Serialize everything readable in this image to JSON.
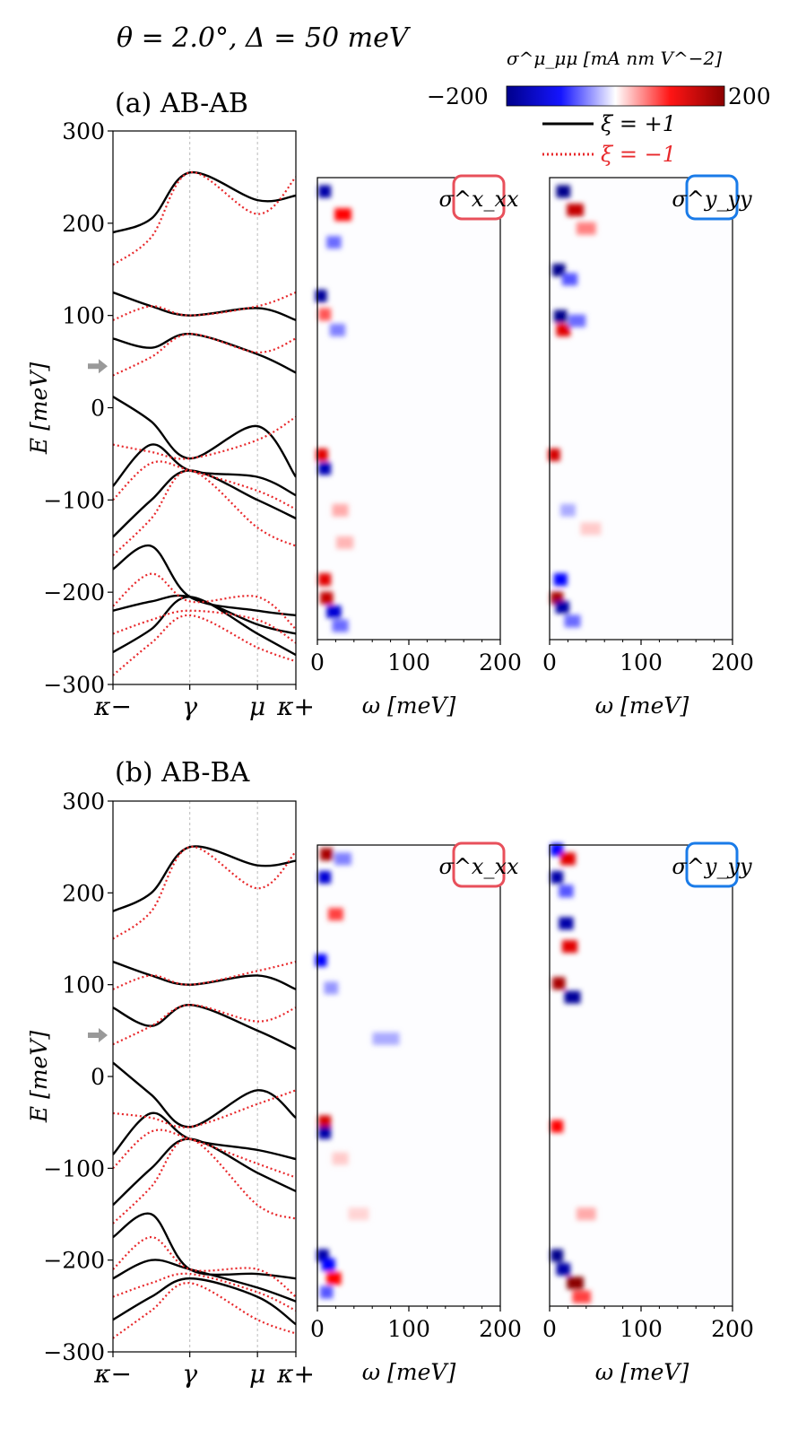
{
  "figure": {
    "header_params": "θ = 2.0°,  Δ = 50 meV",
    "colorbar": {
      "label": "σ^μ_μμ [mA nm V^−2]",
      "min_label": "−200",
      "max_label": "200",
      "min": -200,
      "max": 200,
      "colors": [
        "#00008b",
        "#0000ff",
        "#ffffff",
        "#ff0000",
        "#8b0000"
      ]
    },
    "legend": [
      {
        "label": "ξ = +1",
        "color": "#000000",
        "style": "solid"
      },
      {
        "label": "ξ = −1",
        "color": "#e8282b",
        "style": "dotted"
      }
    ],
    "band_axis": {
      "ylabel": "E [meV]",
      "y_ticks": [
        "300",
        "200",
        "100",
        "0",
        "−100",
        "−200",
        "−300"
      ],
      "k_ticks": [
        "κ−",
        "γ",
        "μ",
        "κ+"
      ]
    },
    "cond_axis": {
      "xlabel": "ω [meV]",
      "x_ticks": [
        "0",
        "100",
        "200"
      ]
    },
    "panel_a": {
      "title": "(a) AB-AB",
      "tag_xx": "σ^x_xx",
      "tag_yy": "σ^y_yy"
    },
    "panel_b": {
      "title": "(b) AB-BA",
      "tag_xx": "σ^x_xx",
      "tag_yy": "σ^y_yy"
    },
    "colors": {
      "tag_xx": "#e8505b",
      "tag_yy": "#1a7be8",
      "arrow": "#999999"
    }
  },
  "chart_data": [
    {
      "type": "line",
      "title": "(a) AB-AB",
      "ylabel": "E [meV]",
      "ylim": [
        -300,
        300
      ],
      "x_ticks": [
        "κ−",
        "γ",
        "μ",
        "κ+"
      ],
      "arrow_energy": 45,
      "series": [
        {
          "name": "ξ = +1",
          "color": "#000000",
          "bands": [
            [
              -265,
              -240,
              -205,
              -245,
              -268
            ],
            [
              -220,
              -210,
              -205,
              -235,
              -245
            ],
            [
              -175,
              -150,
              -205,
              -220,
              -225
            ],
            [
              -140,
              -100,
              -68,
              -100,
              -120
            ],
            [
              -85,
              -40,
              -68,
              -75,
              -95
            ],
            [
              12,
              -15,
              -55,
              -20,
              -75
            ],
            [
              75,
              65,
              80,
              58,
              38
            ],
            [
              125,
              110,
              100,
              108,
              95
            ],
            [
              190,
              205,
              255,
              225,
              230
            ]
          ]
        },
        {
          "name": "ξ = −1",
          "color": "#e8282b",
          "bands": [
            [
              -290,
              -255,
              -225,
              -260,
              -275
            ],
            [
              -245,
              -230,
              -220,
              -230,
              -255
            ],
            [
              -215,
              -180,
              -210,
              -205,
              -240
            ],
            [
              -160,
              -120,
              -68,
              -130,
              -150
            ],
            [
              -100,
              -60,
              -68,
              -90,
              -110
            ],
            [
              -40,
              -48,
              -55,
              -35,
              -10
            ],
            [
              35,
              55,
              80,
              60,
              75
            ],
            [
              95,
              110,
              100,
              110,
              125
            ],
            [
              155,
              185,
              255,
              210,
              250
            ]
          ]
        }
      ]
    },
    {
      "type": "heatmap",
      "title": "σ^x_xx",
      "xlabel": "ω [meV]",
      "xlim": [
        0,
        200
      ],
      "ylim": [
        -250,
        250
      ],
      "zlim": [
        -200,
        200
      ],
      "spots": [
        [
          8,
          235,
          -180
        ],
        [
          28,
          210,
          120
        ],
        [
          18,
          180,
          -70
        ],
        [
          4,
          122,
          -190
        ],
        [
          8,
          102,
          80
        ],
        [
          22,
          85,
          -60
        ],
        [
          5,
          -50,
          140
        ],
        [
          8,
          -65,
          -170
        ],
        [
          25,
          -110,
          40
        ],
        [
          30,
          -145,
          35
        ],
        [
          8,
          -185,
          140
        ],
        [
          10,
          -205,
          160
        ],
        [
          18,
          -220,
          -150
        ],
        [
          25,
          -235,
          -70
        ]
      ]
    },
    {
      "type": "heatmap",
      "title": "σ^y_yy",
      "xlabel": "ω [meV]",
      "xlim": [
        0,
        200
      ],
      "ylim": [
        -250,
        250
      ],
      "zlim": [
        -200,
        200
      ],
      "spots": [
        [
          15,
          235,
          -200
        ],
        [
          28,
          215,
          160
        ],
        [
          40,
          195,
          60
        ],
        [
          10,
          150,
          -200
        ],
        [
          22,
          140,
          -80
        ],
        [
          12,
          100,
          -200
        ],
        [
          15,
          85,
          140
        ],
        [
          30,
          95,
          -70
        ],
        [
          5,
          -50,
          150
        ],
        [
          20,
          -110,
          -40
        ],
        [
          45,
          -130,
          25
        ],
        [
          12,
          -185,
          -120
        ],
        [
          8,
          -205,
          180
        ],
        [
          14,
          -215,
          -180
        ],
        [
          25,
          -230,
          -70
        ]
      ]
    },
    {
      "type": "line",
      "title": "(b) AB-BA",
      "ylabel": "E [meV]",
      "ylim": [
        -300,
        300
      ],
      "x_ticks": [
        "κ−",
        "γ",
        "μ",
        "κ+"
      ],
      "arrow_energy": 45,
      "series": [
        {
          "name": "ξ = +1",
          "color": "#000000",
          "bands": [
            [
              -265,
              -240,
              -220,
              -240,
              -270
            ],
            [
              -220,
              -200,
              -210,
              -230,
              -245
            ],
            [
              -175,
              -150,
              -210,
              -215,
              -220
            ],
            [
              -140,
              -100,
              -68,
              -105,
              -125
            ],
            [
              -85,
              -40,
              -68,
              -80,
              -90
            ],
            [
              15,
              -20,
              -55,
              -15,
              -45
            ],
            [
              75,
              55,
              78,
              50,
              30
            ],
            [
              125,
              110,
              100,
              110,
              95
            ],
            [
              180,
              200,
              250,
              230,
              235
            ]
          ]
        },
        {
          "name": "ξ = −1",
          "color": "#e8282b",
          "bands": [
            [
              -285,
              -255,
              -225,
              -265,
              -280
            ],
            [
              -240,
              -225,
              -215,
              -235,
              -255
            ],
            [
              -210,
              -175,
              -210,
              -210,
              -240
            ],
            [
              -160,
              -120,
              -68,
              -140,
              -155
            ],
            [
              -100,
              -60,
              -68,
              -95,
              -110
            ],
            [
              -40,
              -45,
              -55,
              -30,
              -15
            ],
            [
              35,
              55,
              78,
              60,
              75
            ],
            [
              95,
              110,
              100,
              115,
              125
            ],
            [
              150,
              180,
              250,
              205,
              245
            ]
          ]
        }
      ]
    },
    {
      "type": "heatmap",
      "title": "σ^x_xx",
      "xlabel": "ω [meV]",
      "xlim": [
        0,
        200
      ],
      "ylim": [
        -250,
        250
      ],
      "zlim": [
        -200,
        200
      ],
      "spots": [
        [
          10,
          240,
          180
        ],
        [
          28,
          235,
          -60
        ],
        [
          8,
          215,
          -150
        ],
        [
          20,
          175,
          90
        ],
        [
          4,
          125,
          -120
        ],
        [
          15,
          95,
          -50
        ],
        [
          75,
          40,
          -40
        ],
        [
          8,
          -50,
          150
        ],
        [
          8,
          -62,
          -180
        ],
        [
          25,
          -90,
          25
        ],
        [
          45,
          -150,
          20
        ],
        [
          6,
          -195,
          -180
        ],
        [
          12,
          -205,
          -120
        ],
        [
          18,
          -220,
          120
        ],
        [
          10,
          -235,
          -80
        ]
      ]
    },
    {
      "type": "heatmap",
      "title": "σ^y_yy",
      "xlabel": "ω [meV]",
      "xlim": [
        0,
        200
      ],
      "ylim": [
        -250,
        250
      ],
      "zlim": [
        -200,
        200
      ],
      "spots": [
        [
          8,
          245,
          -120
        ],
        [
          20,
          235,
          140
        ],
        [
          8,
          215,
          -180
        ],
        [
          18,
          200,
          -80
        ],
        [
          18,
          165,
          -180
        ],
        [
          22,
          140,
          140
        ],
        [
          10,
          100,
          180
        ],
        [
          25,
          85,
          -190
        ],
        [
          8,
          -55,
          120
        ],
        [
          40,
          -150,
          40
        ],
        [
          8,
          -195,
          -200
        ],
        [
          15,
          -210,
          -180
        ],
        [
          28,
          -225,
          200
        ],
        [
          35,
          -240,
          90
        ]
      ]
    }
  ]
}
